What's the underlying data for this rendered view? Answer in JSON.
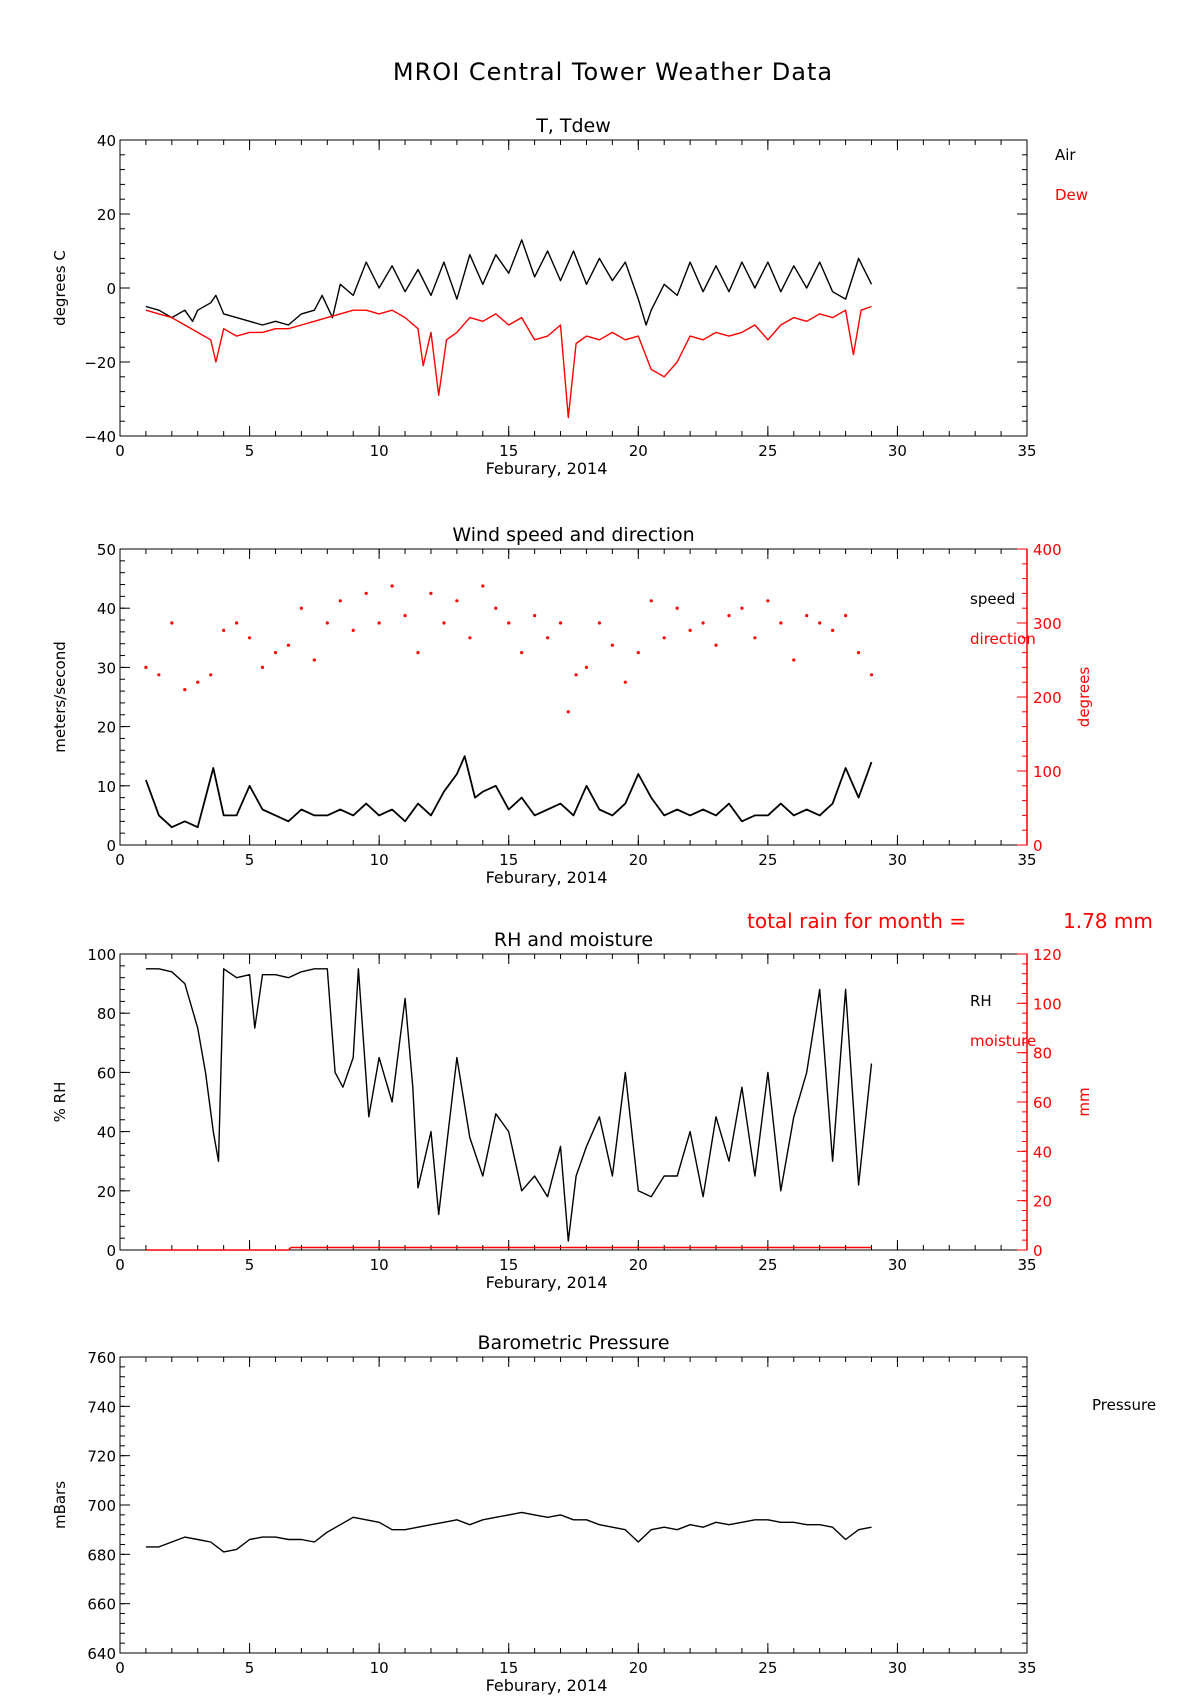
{
  "title": "MROI Central Tower Weather Data",
  "rain_note": {
    "label": "total rain for month =",
    "value": "1.78 mm",
    "color": "#ff0000"
  },
  "colors": {
    "primary": "#000000",
    "secondary": "#ff0000"
  },
  "chart_data": [
    {
      "type": "line",
      "title": "T, Tdew",
      "xlabel": "Feburary, 2014",
      "ylabel": "degrees C",
      "xlim": [
        0,
        35
      ],
      "ylim": [
        -40,
        40
      ],
      "xticks": [
        0,
        5,
        10,
        15,
        20,
        25,
        30,
        35
      ],
      "yticks": [
        -40,
        -20,
        0,
        20,
        40
      ],
      "legend": [
        {
          "label": "Air",
          "color": "#000000"
        },
        {
          "label": "Dew",
          "color": "#ff0000"
        }
      ],
      "series": [
        {
          "name": "Air",
          "color": "#000000",
          "x": [
            1,
            1.5,
            2,
            2.5,
            2.8,
            3,
            3.5,
            3.7,
            4,
            4.5,
            5,
            5.5,
            6,
            6.5,
            7,
            7.5,
            7.8,
            8.2,
            8.5,
            9,
            9.5,
            10,
            10.5,
            11,
            11.5,
            12,
            12.5,
            13,
            13.5,
            14,
            14.5,
            15,
            15.5,
            16,
            16.5,
            17,
            17.5,
            18,
            18.5,
            19,
            19.5,
            20,
            20.3,
            20.5,
            21,
            21.5,
            22,
            22.5,
            23,
            23.5,
            24,
            24.5,
            25,
            25.5,
            26,
            26.5,
            27,
            27.5,
            28,
            28.5,
            29
          ],
          "y": [
            -5,
            -6,
            -8,
            -6,
            -9,
            -6,
            -4,
            -2,
            -7,
            -8,
            -9,
            -10,
            -9,
            -10,
            -7,
            -6,
            -2,
            -8,
            1,
            -2,
            7,
            0,
            6,
            -1,
            5,
            -2,
            7,
            -3,
            9,
            1,
            9,
            4,
            13,
            3,
            10,
            2,
            10,
            1,
            8,
            2,
            7,
            -3,
            -10,
            -6,
            1,
            -2,
            7,
            -1,
            6,
            -1,
            7,
            0,
            7,
            -1,
            6,
            0,
            7,
            -1,
            -3,
            8,
            1
          ]
        },
        {
          "name": "Dew",
          "color": "#ff0000",
          "x": [
            1,
            1.5,
            2,
            2.5,
            3,
            3.5,
            3.7,
            4,
            4.5,
            5,
            5.5,
            6,
            6.5,
            7,
            7.5,
            8,
            8.5,
            9,
            9.5,
            10,
            10.5,
            11,
            11.5,
            11.7,
            12,
            12.3,
            12.6,
            13,
            13.5,
            14,
            14.5,
            15,
            15.5,
            16,
            16.5,
            17,
            17.3,
            17.6,
            18,
            18.5,
            19,
            19.5,
            20,
            20.5,
            21,
            21.5,
            22,
            22.5,
            23,
            23.5,
            24,
            24.5,
            25,
            25.5,
            26,
            26.5,
            27,
            27.5,
            28,
            28.3,
            28.6,
            29
          ],
          "y": [
            -6,
            -7,
            -8,
            -10,
            -12,
            -14,
            -20,
            -11,
            -13,
            -12,
            -12,
            -11,
            -11,
            -10,
            -9,
            -8,
            -7,
            -6,
            -6,
            -7,
            -6,
            -8,
            -11,
            -21,
            -12,
            -29,
            -14,
            -12,
            -8,
            -9,
            -7,
            -10,
            -8,
            -14,
            -13,
            -10,
            -35,
            -15,
            -13,
            -14,
            -12,
            -14,
            -13,
            -22,
            -24,
            -20,
            -13,
            -14,
            -12,
            -13,
            -12,
            -10,
            -14,
            -10,
            -8,
            -9,
            -7,
            -8,
            -6,
            -18,
            -6,
            -5
          ]
        }
      ]
    },
    {
      "type": "scatter",
      "title": "Wind speed and direction",
      "xlabel": "Feburary, 2014",
      "ylabel": "meters/second",
      "y2label": "degrees",
      "xlim": [
        0,
        35
      ],
      "ylim": [
        0,
        50
      ],
      "y2lim": [
        0,
        400
      ],
      "xticks": [
        0,
        5,
        10,
        15,
        20,
        25,
        30,
        35
      ],
      "yticks": [
        0,
        10,
        20,
        30,
        40,
        50
      ],
      "y2ticks": [
        0,
        100,
        200,
        300,
        400
      ],
      "legend": [
        {
          "label": "speed",
          "color": "#000000"
        },
        {
          "label": "direction",
          "color": "#ff0000"
        }
      ],
      "series": [
        {
          "name": "speed",
          "color": "#000000",
          "axis": "left",
          "x": [
            1,
            1.5,
            2,
            2.5,
            3,
            3.3,
            3.6,
            4,
            4.5,
            5,
            5.5,
            6,
            6.5,
            7,
            7.5,
            8,
            8.5,
            9,
            9.5,
            10,
            10.5,
            11,
            11.5,
            12,
            12.5,
            13,
            13.3,
            13.7,
            14,
            14.5,
            15,
            15.5,
            16,
            16.5,
            17,
            17.5,
            18,
            18.5,
            19,
            19.5,
            20,
            20.5,
            21,
            21.5,
            22,
            22.5,
            23,
            23.5,
            24,
            24.5,
            25,
            25.5,
            26,
            26.5,
            27,
            27.5,
            28,
            28.5,
            29
          ],
          "y": [
            11,
            5,
            3,
            4,
            3,
            8,
            13,
            5,
            5,
            10,
            6,
            5,
            4,
            6,
            5,
            5,
            6,
            5,
            7,
            5,
            6,
            4,
            7,
            5,
            9,
            12,
            15,
            8,
            9,
            10,
            6,
            8,
            5,
            6,
            7,
            5,
            10,
            6,
            5,
            7,
            12,
            8,
            5,
            6,
            5,
            6,
            5,
            7,
            4,
            5,
            5,
            7,
            5,
            6,
            5,
            7,
            13,
            8,
            14
          ]
        },
        {
          "name": "direction",
          "color": "#ff0000",
          "axis": "right",
          "x": [
            1,
            1.5,
            2,
            2.5,
            3,
            3.5,
            4,
            4.5,
            5,
            5.5,
            6,
            6.5,
            7,
            7.5,
            8,
            8.5,
            9,
            9.5,
            10,
            10.5,
            11,
            11.5,
            12,
            12.5,
            13,
            13.5,
            14,
            14.5,
            15,
            15.5,
            16,
            16.5,
            17,
            17.3,
            17.6,
            18,
            18.5,
            19,
            19.5,
            20,
            20.5,
            21,
            21.5,
            22,
            22.5,
            23,
            23.5,
            24,
            24.5,
            25,
            25.5,
            26,
            26.5,
            27,
            27.5,
            28,
            28.5,
            29
          ],
          "y": [
            240,
            230,
            300,
            210,
            220,
            230,
            290,
            300,
            280,
            240,
            260,
            270,
            320,
            250,
            300,
            330,
            290,
            340,
            300,
            350,
            310,
            260,
            340,
            300,
            330,
            280,
            350,
            320,
            300,
            260,
            310,
            280,
            300,
            180,
            230,
            240,
            300,
            270,
            220,
            260,
            330,
            280,
            320,
            290,
            300,
            270,
            310,
            320,
            280,
            330,
            300,
            250,
            310,
            300,
            290,
            310,
            260,
            230
          ]
        }
      ]
    },
    {
      "type": "line",
      "title": "RH and moisture",
      "xlabel": "Feburary, 2014",
      "ylabel": "% RH",
      "y2label": "mm",
      "xlim": [
        0,
        35
      ],
      "ylim": [
        0,
        100
      ],
      "y2lim": [
        0,
        120
      ],
      "xticks": [
        0,
        5,
        10,
        15,
        20,
        25,
        30,
        35
      ],
      "yticks": [
        0,
        20,
        40,
        60,
        80,
        100
      ],
      "y2ticks": [
        0,
        20,
        40,
        60,
        80,
        100,
        120
      ],
      "legend": [
        {
          "label": "RH",
          "color": "#000000"
        },
        {
          "label": "moisture",
          "color": "#ff0000"
        }
      ],
      "series": [
        {
          "name": "RH",
          "color": "#000000",
          "axis": "left",
          "x": [
            1,
            1.5,
            2,
            2.5,
            3,
            3.3,
            3.6,
            3.8,
            4,
            4.5,
            5,
            5.2,
            5.5,
            6,
            6.5,
            7,
            7.5,
            8,
            8.3,
            8.6,
            9,
            9.2,
            9.6,
            10,
            10.5,
            11,
            11.3,
            11.5,
            12,
            12.3,
            12.6,
            13,
            13.5,
            14,
            14.5,
            15,
            15.5,
            16,
            16.5,
            17,
            17.3,
            17.6,
            18,
            18.5,
            19,
            19.5,
            20,
            20.5,
            21,
            21.5,
            22,
            22.5,
            23,
            23.5,
            24,
            24.5,
            25,
            25.5,
            26,
            26.5,
            27,
            27.5,
            28,
            28.5,
            29
          ],
          "y": [
            95,
            95,
            94,
            90,
            75,
            60,
            40,
            30,
            95,
            92,
            93,
            75,
            93,
            93,
            92,
            94,
            95,
            95,
            60,
            55,
            65,
            95,
            45,
            65,
            50,
            85,
            55,
            21,
            40,
            12,
            35,
            65,
            38,
            25,
            46,
            40,
            20,
            25,
            18,
            35,
            3,
            25,
            35,
            45,
            25,
            60,
            20,
            18,
            25,
            25,
            40,
            18,
            45,
            30,
            55,
            25,
            60,
            20,
            45,
            60,
            88,
            30,
            88,
            22,
            63
          ]
        },
        {
          "name": "moisture",
          "color": "#ff0000",
          "axis": "right",
          "x": [
            1,
            6.5,
            6.6,
            29
          ],
          "y": [
            0,
            0,
            1,
            1
          ]
        }
      ]
    },
    {
      "type": "line",
      "title": "Barometric Pressure",
      "xlabel": "Feburary, 2014",
      "ylabel": "mBars",
      "xlim": [
        0,
        35
      ],
      "ylim": [
        640,
        760
      ],
      "xticks": [
        0,
        5,
        10,
        15,
        20,
        25,
        30,
        35
      ],
      "yticks": [
        640,
        660,
        680,
        700,
        720,
        740,
        760
      ],
      "legend": [
        {
          "label": "Pressure",
          "color": "#000000"
        }
      ],
      "series": [
        {
          "name": "Pressure",
          "color": "#000000",
          "x": [
            1,
            1.5,
            2,
            2.5,
            3,
            3.5,
            4,
            4.5,
            5,
            5.5,
            6,
            6.5,
            7,
            7.5,
            8,
            8.5,
            9,
            9.5,
            10,
            10.5,
            11,
            11.5,
            12,
            12.5,
            13,
            13.5,
            14,
            14.5,
            15,
            15.5,
            16,
            16.5,
            17,
            17.5,
            18,
            18.5,
            19,
            19.5,
            20,
            20.5,
            21,
            21.5,
            22,
            22.5,
            23,
            23.5,
            24,
            24.5,
            25,
            25.5,
            26,
            26.5,
            27,
            27.5,
            28,
            28.5,
            29
          ],
          "y": [
            683,
            683,
            685,
            687,
            686,
            685,
            681,
            682,
            686,
            687,
            687,
            686,
            686,
            685,
            689,
            692,
            695,
            694,
            693,
            690,
            690,
            691,
            692,
            693,
            694,
            692,
            694,
            695,
            696,
            697,
            696,
            695,
            696,
            694,
            694,
            692,
            691,
            690,
            685,
            690,
            691,
            690,
            692,
            691,
            693,
            692,
            693,
            694,
            694,
            693,
            693,
            692,
            692,
            691,
            686,
            690,
            691
          ]
        }
      ]
    }
  ]
}
